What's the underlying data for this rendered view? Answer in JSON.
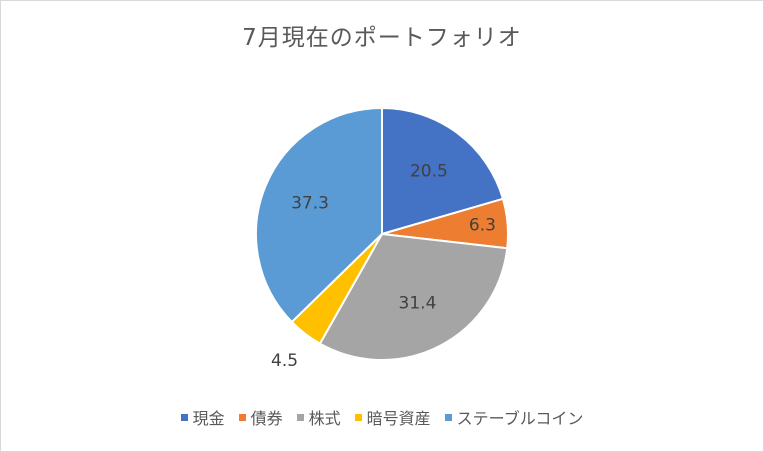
{
  "chart_data": {
    "type": "pie",
    "title": "7月現在のポートフォリオ",
    "categories": [
      "現金",
      "債券",
      "株式",
      "暗号資産",
      "ステーブルコイン"
    ],
    "values": [
      20.5,
      6.3,
      31.4,
      4.5,
      37.3
    ],
    "data_labels": [
      "20.5",
      "6.3",
      "31.4",
      "4.5",
      "37.3"
    ],
    "colors": [
      "#4472c4",
      "#ed7d31",
      "#a5a5a5",
      "#ffc000",
      "#5b9bd5"
    ],
    "legend": {
      "placement": "bottom"
    }
  }
}
